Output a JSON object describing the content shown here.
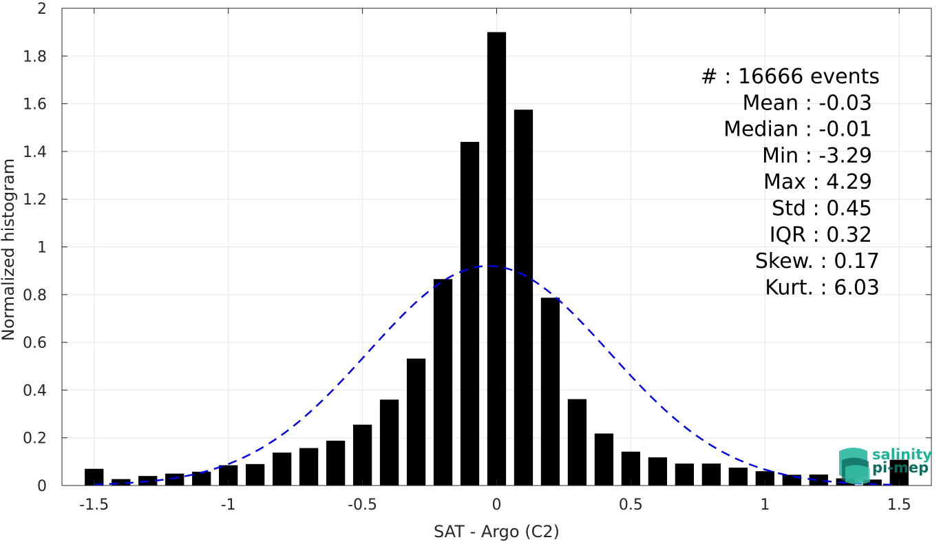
{
  "chart_data": {
    "type": "bar",
    "xlabel": "SAT - Argo (C2)",
    "ylabel": "Normalized histogram",
    "xlim": [
      -1.62,
      1.62
    ],
    "ylim": [
      0,
      2
    ],
    "xticks": [
      "-1.5",
      "-1",
      "-0.5",
      "0",
      "0.5",
      "1",
      "1.5"
    ],
    "xtick_values": [
      -1.5,
      -1,
      -0.5,
      0,
      0.5,
      1,
      1.5
    ],
    "yticks": [
      "0",
      "0.2",
      "0.4",
      "0.6",
      "0.8",
      "1",
      "1.2",
      "1.4",
      "1.6",
      "1.8",
      "2"
    ],
    "ytick_values": [
      0,
      0.2,
      0.4,
      0.6,
      0.8,
      1,
      1.2,
      1.4,
      1.6,
      1.8,
      2
    ],
    "grid": true,
    "bar_color": "#000000",
    "bin_width": 0.1,
    "bins": [
      {
        "x": -1.5,
        "y": 0.07
      },
      {
        "x": -1.4,
        "y": 0.027
      },
      {
        "x": -1.3,
        "y": 0.04
      },
      {
        "x": -1.2,
        "y": 0.05
      },
      {
        "x": -1.1,
        "y": 0.058
      },
      {
        "x": -1.0,
        "y": 0.085
      },
      {
        "x": -0.9,
        "y": 0.09
      },
      {
        "x": -0.8,
        "y": 0.138
      },
      {
        "x": -0.7,
        "y": 0.157
      },
      {
        "x": -0.6,
        "y": 0.188
      },
      {
        "x": -0.5,
        "y": 0.255
      },
      {
        "x": -0.4,
        "y": 0.36
      },
      {
        "x": -0.3,
        "y": 0.532
      },
      {
        "x": -0.2,
        "y": 0.865
      },
      {
        "x": -0.1,
        "y": 1.44
      },
      {
        "x": 0.0,
        "y": 1.9
      },
      {
        "x": 0.1,
        "y": 1.575
      },
      {
        "x": 0.2,
        "y": 0.787
      },
      {
        "x": 0.3,
        "y": 0.362
      },
      {
        "x": 0.4,
        "y": 0.218
      },
      {
        "x": 0.5,
        "y": 0.142
      },
      {
        "x": 0.6,
        "y": 0.118
      },
      {
        "x": 0.7,
        "y": 0.092
      },
      {
        "x": 0.8,
        "y": 0.092
      },
      {
        "x": 0.9,
        "y": 0.075
      },
      {
        "x": 1.0,
        "y": 0.06
      },
      {
        "x": 1.1,
        "y": 0.045
      },
      {
        "x": 1.2,
        "y": 0.046
      },
      {
        "x": 1.3,
        "y": 0.03
      },
      {
        "x": 1.4,
        "y": 0.025
      },
      {
        "x": 1.5,
        "y": 0.108
      }
    ],
    "fit": {
      "type": "gaussian",
      "style": "dashed",
      "color": "#0000e6",
      "mean": -0.03,
      "std": 0.45,
      "peak": 0.92,
      "x_range": [
        -1.5,
        1.5
      ]
    },
    "stats": [
      {
        "label": "#  : 16666 events",
        "anchor": "right-a"
      },
      {
        "label": "Mean : -0.03",
        "anchor": "right-b"
      },
      {
        "label": "Median : -0.01",
        "anchor": "right-b"
      },
      {
        "label": "Min : -3.29",
        "anchor": "right-b"
      },
      {
        "label": "Max : 4.29",
        "anchor": "right-b"
      },
      {
        "label": "Std : 0.45",
        "anchor": "right-b"
      },
      {
        "label": "IQR : 0.32",
        "anchor": "right-b"
      },
      {
        "label": "Skew. : 0.17",
        "anchor": "right-a"
      },
      {
        "label": "Kurt. : 6.03",
        "anchor": "right-a"
      }
    ]
  },
  "logo": {
    "line1": "salinity",
    "line2": "pi-mep",
    "color1": "#1db39a",
    "color2": "#0e6b60"
  }
}
